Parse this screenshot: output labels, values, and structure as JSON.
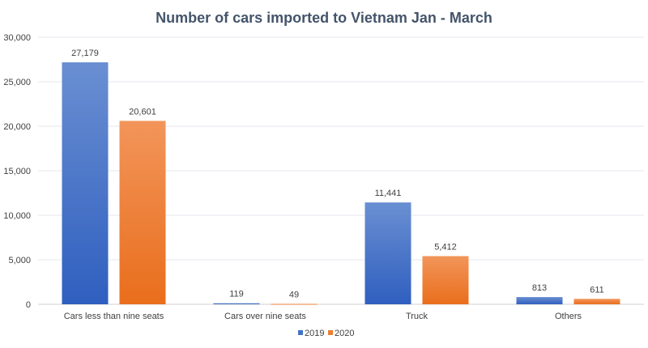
{
  "chart_data": {
    "type": "bar",
    "title": "Number of cars imported to Vietnam Jan - March",
    "categories": [
      "Cars less than nine seats",
      "Cars over nine seats",
      "Truck",
      "Others"
    ],
    "series": [
      {
        "name": "2019",
        "values": [
          27179,
          119,
          11441,
          813
        ],
        "labels": [
          "27,179",
          "119",
          "11,441",
          "813"
        ],
        "color": "#4472c4"
      },
      {
        "name": "2020",
        "values": [
          20601,
          49,
          5412,
          611
        ],
        "labels": [
          "20,601",
          "49",
          "5,412",
          "611"
        ],
        "color": "#ed7d31"
      }
    ],
    "yticks": [
      0,
      5000,
      10000,
      15000,
      20000,
      25000,
      30000
    ],
    "ytick_labels": [
      "0",
      "5,000",
      "10,000",
      "15,000",
      "20,000",
      "25,000",
      "30,000"
    ],
    "ylim": [
      0,
      30000
    ],
    "xlabel": "",
    "ylabel": "",
    "grid": true,
    "legend": "bottom"
  }
}
